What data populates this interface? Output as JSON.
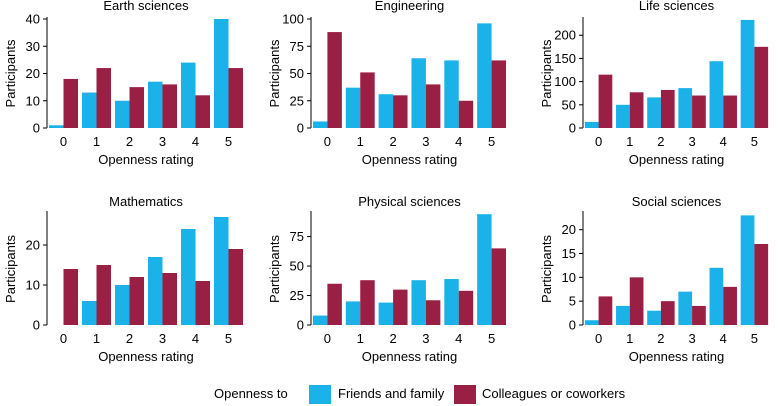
{
  "chart_data": [
    {
      "type": "bar",
      "title": "Earth sciences",
      "xlabel": "Openness rating",
      "ylabel": "Participants",
      "categories": [
        "0",
        "1",
        "2",
        "3",
        "4",
        "5"
      ],
      "ylim": [
        0,
        40
      ],
      "yticks": [
        0,
        10,
        20,
        30,
        40
      ],
      "series": [
        {
          "name": "Friends and family",
          "values": [
            1,
            13,
            10,
            17,
            24,
            40
          ]
        },
        {
          "name": "Colleagues or coworkers",
          "values": [
            18,
            22,
            15,
            16,
            12,
            22
          ]
        }
      ]
    },
    {
      "type": "bar",
      "title": "Engineering",
      "xlabel": "Openness rating",
      "ylabel": "Participants",
      "categories": [
        "0",
        "1",
        "2",
        "3",
        "4",
        "5"
      ],
      "ylim": [
        0,
        100
      ],
      "yticks": [
        0,
        25,
        50,
        75,
        100
      ],
      "series": [
        {
          "name": "Friends and family",
          "values": [
            6,
            37,
            31,
            64,
            62,
            96
          ]
        },
        {
          "name": "Colleagues or coworkers",
          "values": [
            88,
            51,
            30,
            40,
            25,
            62
          ]
        }
      ]
    },
    {
      "type": "bar",
      "title": "Life sciences",
      "xlabel": "Openness rating",
      "ylabel": "Participants",
      "categories": [
        "0",
        "1",
        "2",
        "3",
        "4",
        "5"
      ],
      "ylim": [
        0,
        235
      ],
      "yticks": [
        0,
        50,
        100,
        150,
        200
      ],
      "series": [
        {
          "name": "Friends and family",
          "values": [
            13,
            50,
            66,
            86,
            144,
            233
          ]
        },
        {
          "name": "Colleagues or coworkers",
          "values": [
            115,
            77,
            82,
            70,
            70,
            175
          ]
        }
      ]
    },
    {
      "type": "bar",
      "title": "Mathematics",
      "xlabel": "Openness rating",
      "ylabel": "Participants",
      "categories": [
        "0",
        "1",
        "2",
        "3",
        "4",
        "5"
      ],
      "ylim": [
        0,
        28
      ],
      "yticks": [
        0,
        10,
        20
      ],
      "series": [
        {
          "name": "Friends and family",
          "values": [
            0,
            6,
            10,
            17,
            24,
            27
          ]
        },
        {
          "name": "Colleagues or coworkers",
          "values": [
            14,
            15,
            12,
            13,
            11,
            19
          ]
        }
      ]
    },
    {
      "type": "bar",
      "title": "Physical sciences",
      "xlabel": "Openness rating",
      "ylabel": "Participants",
      "categories": [
        "0",
        "1",
        "2",
        "3",
        "4",
        "5"
      ],
      "ylim": [
        0,
        95
      ],
      "yticks": [
        0,
        25,
        50,
        75
      ],
      "series": [
        {
          "name": "Friends and family",
          "values": [
            8,
            20,
            19,
            38,
            39,
            94
          ]
        },
        {
          "name": "Colleagues or coworkers",
          "values": [
            35,
            38,
            30,
            21,
            29,
            65
          ]
        }
      ]
    },
    {
      "type": "bar",
      "title": "Social sciences",
      "xlabel": "Openness rating",
      "ylabel": "Participants",
      "categories": [
        "0",
        "1",
        "2",
        "3",
        "4",
        "5"
      ],
      "ylim": [
        0,
        23.5
      ],
      "yticks": [
        0,
        5,
        10,
        15,
        20
      ],
      "series": [
        {
          "name": "Friends and family",
          "values": [
            1,
            4,
            3,
            7,
            12,
            23
          ]
        },
        {
          "name": "Colleagues or coworkers",
          "values": [
            6,
            10,
            5,
            4,
            8,
            17
          ]
        }
      ]
    }
  ],
  "legend": {
    "title": "Openness to",
    "items": [
      "Friends and family",
      "Colleagues or coworkers"
    ]
  },
  "colors": {
    "friends": "#1AB2E8",
    "colleagues": "#9A1F45",
    "axis": "#000000"
  }
}
